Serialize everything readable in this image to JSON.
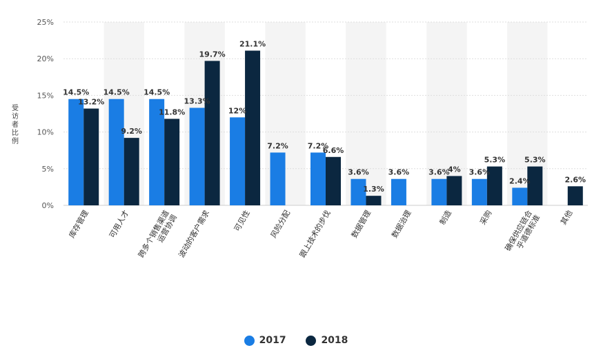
{
  "chart_data": {
    "type": "bar",
    "ylabel": "受访者比例",
    "ylim": [
      0,
      25
    ],
    "yticks": [
      "0%",
      "5%",
      "10%",
      "15%",
      "20%",
      "25%"
    ],
    "grid": true,
    "legend_position": "bottom-center",
    "categories": [
      "库存管理",
      "可用人才",
      "跨多个销售渠道运营协调",
      "波动的客户需求",
      "可见性",
      "风险分配",
      "跟上技术的步伐",
      "数据管理",
      "数据治理",
      "制造",
      "采购",
      "确保供应链合乎道德标准",
      "其他"
    ],
    "category_lines": [
      [
        "库存管理"
      ],
      [
        "可用人才"
      ],
      [
        "跨多个销售渠道",
        "运营协调"
      ],
      [
        "波动的客户需求"
      ],
      [
        "可见性"
      ],
      [
        "风险分配"
      ],
      [
        "跟上技术的步伐"
      ],
      [
        "数据管理"
      ],
      [
        "数据治理"
      ],
      [
        "制造"
      ],
      [
        "采购"
      ],
      [
        "确保供应链合",
        "乎道德标准"
      ],
      [
        "其他"
      ]
    ],
    "series": [
      {
        "name": "2017",
        "color": "#1a7de4",
        "values": [
          14.5,
          14.5,
          14.5,
          13.3,
          12,
          7.2,
          7.2,
          3.6,
          3.6,
          3.6,
          3.6,
          2.4,
          null
        ],
        "labels": [
          "14.5%",
          "14.5%",
          "14.5%",
          "13.3%",
          "12%",
          "7.2%",
          "7.2%",
          "3.6%",
          "3.6%",
          "3.6%",
          "3.6%",
          "2.4%",
          null
        ]
      },
      {
        "name": "2018",
        "color": "#0b2740",
        "values": [
          13.2,
          9.2,
          11.8,
          19.7,
          21.1,
          null,
          6.6,
          1.3,
          null,
          4,
          5.3,
          5.3,
          2.6
        ],
        "labels": [
          "13.2%",
          "9.2%",
          "11.8%",
          "19.7%",
          "21.1%",
          null,
          "6.6%",
          "1.3%",
          null,
          "4%",
          "5.3%",
          "5.3%",
          "2.6%"
        ]
      }
    ]
  },
  "legend": {
    "items": [
      {
        "label": "2017",
        "color": "#1a7de4"
      },
      {
        "label": "2018",
        "color": "#0b2740"
      }
    ]
  }
}
